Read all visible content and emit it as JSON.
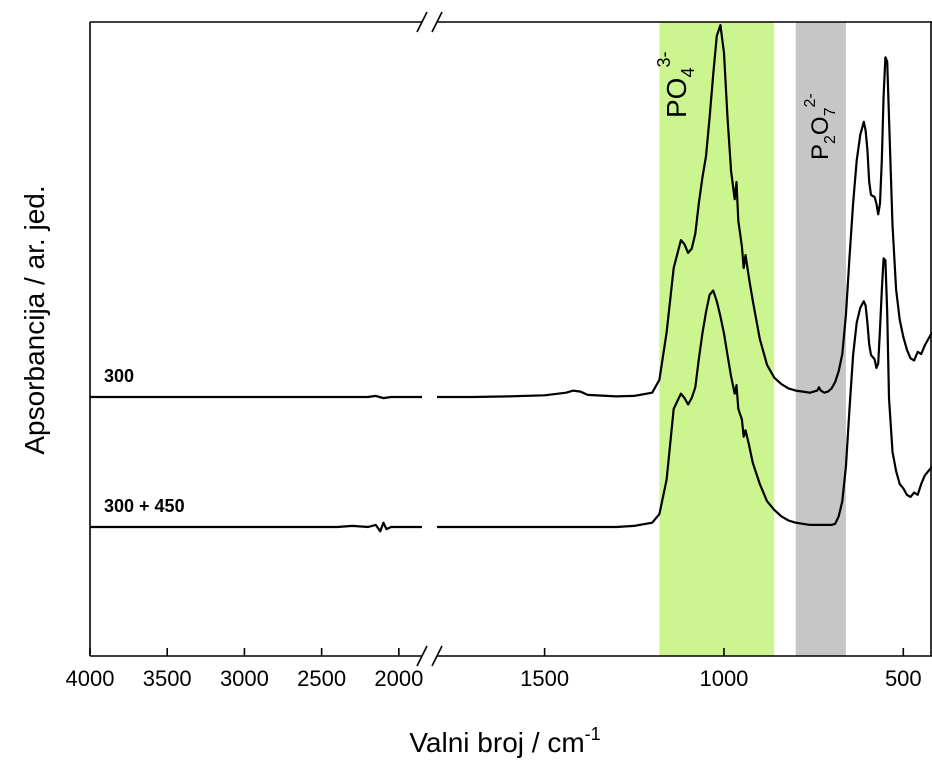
{
  "chart_data": {
    "type": "line",
    "title": "",
    "xlabel": "Valni broj / cm",
    "xlabel_sup": "-1",
    "ylabel": "Apsorbancija / ar. jed.",
    "x_axis_break": [
      1850,
      1800
    ],
    "xlim_left_segment": [
      4000,
      1850
    ],
    "xlim_right_segment": [
      1800,
      420
    ],
    "x_ticks": [
      {
        "value": 4000,
        "label": "4000"
      },
      {
        "value": 3500,
        "label": "3500"
      },
      {
        "value": 3000,
        "label": "3000"
      },
      {
        "value": 2500,
        "label": "2500"
      },
      {
        "value": 2000,
        "label": "2000"
      },
      {
        "value": 1500,
        "label": "1500"
      },
      {
        "value": 1000,
        "label": "1000"
      },
      {
        "value": 500,
        "label": "500"
      }
    ],
    "y_ticks_shown": false,
    "grid": false,
    "bands": [
      {
        "name": "PO4 3-",
        "base": "PO",
        "sub": "4",
        "sup": "3-",
        "from": 1180,
        "to": 860,
        "color": "#ccf58f"
      },
      {
        "name": "P2O7 2-",
        "base1": "P",
        "sub1": "2",
        "base2": "O",
        "sub2": "7",
        "sup": "2-",
        "from": 800,
        "to": 660,
        "color": "#c6c6c6"
      }
    ],
    "series": [
      {
        "name": "300",
        "color": "#000000",
        "x": [
          4000,
          3500,
          3000,
          2800,
          2600,
          2400,
          2300,
          2200,
          2150,
          2100,
          2050,
          2000,
          1900,
          1850,
          1800,
          1700,
          1600,
          1500,
          1440,
          1420,
          1400,
          1380,
          1300,
          1250,
          1200,
          1180,
          1160,
          1140,
          1120,
          1110,
          1100,
          1090,
          1080,
          1070,
          1060,
          1050,
          1040,
          1030,
          1020,
          1010,
          1000,
          990,
          980,
          970,
          965,
          960,
          950,
          945,
          940,
          930,
          920,
          900,
          880,
          860,
          840,
          820,
          800,
          780,
          760,
          740,
          735,
          730,
          720,
          710,
          700,
          690,
          680,
          670,
          660,
          650,
          640,
          630,
          620,
          610,
          605,
          600,
          595,
          590,
          580,
          575,
          570,
          565,
          560,
          555,
          550,
          545,
          540,
          530,
          520,
          510,
          500,
          490,
          480,
          470,
          460,
          450,
          440,
          430,
          420
        ],
        "y": [
          0.0,
          0.0,
          0.0,
          0.0,
          0.0,
          0.0,
          0.0,
          0.0,
          0.005,
          -0.005,
          0.0,
          0.0,
          0.0,
          0.0,
          0.0,
          0.0,
          0.003,
          0.008,
          0.02,
          0.03,
          0.025,
          0.01,
          0.003,
          0.005,
          0.02,
          0.08,
          0.3,
          0.6,
          0.73,
          0.71,
          0.67,
          0.69,
          0.76,
          0.9,
          1.02,
          1.12,
          1.3,
          1.5,
          1.68,
          1.73,
          1.6,
          1.3,
          1.05,
          0.92,
          1.0,
          0.82,
          0.7,
          0.6,
          0.66,
          0.55,
          0.45,
          0.27,
          0.15,
          0.09,
          0.06,
          0.04,
          0.03,
          0.025,
          0.02,
          0.03,
          0.045,
          0.03,
          0.02,
          0.025,
          0.04,
          0.07,
          0.12,
          0.2,
          0.38,
          0.65,
          0.9,
          1.1,
          1.22,
          1.28,
          1.24,
          1.15,
          1.0,
          0.94,
          0.93,
          0.9,
          0.85,
          0.9,
          1.1,
          1.4,
          1.58,
          1.56,
          1.3,
          0.8,
          0.5,
          0.36,
          0.28,
          0.22,
          0.18,
          0.17,
          0.21,
          0.2,
          0.24,
          0.27,
          0.3
        ]
      },
      {
        "name": "300 + 450",
        "color": "#000000",
        "x": [
          4000,
          3500,
          3000,
          2800,
          2600,
          2400,
          2300,
          2200,
          2150,
          2120,
          2100,
          2080,
          2050,
          2000,
          1900,
          1850,
          1800,
          1700,
          1600,
          1500,
          1440,
          1400,
          1300,
          1250,
          1200,
          1180,
          1160,
          1140,
          1120,
          1110,
          1100,
          1090,
          1080,
          1070,
          1060,
          1050,
          1040,
          1030,
          1020,
          1010,
          1000,
          990,
          980,
          970,
          965,
          960,
          950,
          945,
          940,
          930,
          920,
          900,
          880,
          860,
          840,
          820,
          800,
          780,
          760,
          740,
          720,
          700,
          690,
          680,
          670,
          660,
          650,
          640,
          630,
          620,
          610,
          605,
          600,
          595,
          590,
          580,
          575,
          570,
          565,
          560,
          555,
          550,
          545,
          540,
          530,
          520,
          510,
          500,
          490,
          480,
          470,
          460,
          450,
          440,
          430,
          420
        ],
        "y": [
          0.0,
          0.0,
          0.0,
          0.0,
          0.0,
          0.0,
          0.005,
          0.0,
          0.01,
          -0.02,
          0.02,
          -0.01,
          0.0,
          0.0,
          0.0,
          0.0,
          0.0,
          0.0,
          0.0,
          0.0,
          0.0,
          0.0,
          0.0,
          0.005,
          0.02,
          0.06,
          0.22,
          0.55,
          0.62,
          0.6,
          0.57,
          0.6,
          0.65,
          0.78,
          0.9,
          1.0,
          1.08,
          1.1,
          1.05,
          0.98,
          0.9,
          0.8,
          0.7,
          0.62,
          0.66,
          0.55,
          0.5,
          0.42,
          0.45,
          0.38,
          0.3,
          0.2,
          0.12,
          0.08,
          0.05,
          0.03,
          0.02,
          0.015,
          0.01,
          0.01,
          0.01,
          0.01,
          0.015,
          0.05,
          0.12,
          0.28,
          0.55,
          0.8,
          0.95,
          1.02,
          1.05,
          1.03,
          0.95,
          0.85,
          0.8,
          0.78,
          0.74,
          0.76,
          0.92,
          1.1,
          1.25,
          1.24,
          1.0,
          0.6,
          0.35,
          0.26,
          0.2,
          0.18,
          0.15,
          0.14,
          0.16,
          0.15,
          0.2,
          0.24,
          0.26,
          0.28
        ]
      }
    ]
  }
}
